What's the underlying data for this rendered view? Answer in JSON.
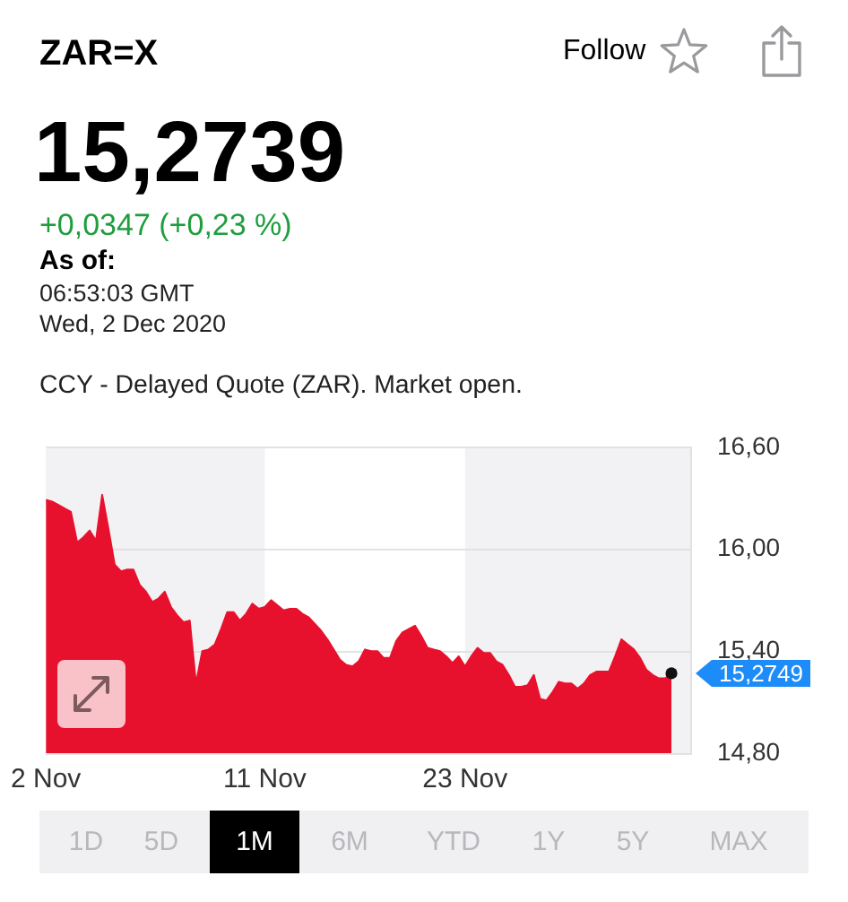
{
  "chart_data": {
    "type": "area",
    "title": "ZAR=X",
    "annotations": [
      "Follow",
      "15,2739",
      "+0,0347 (+0,23 %)",
      "As of:",
      "06:53:03 GMT",
      "Wed, 2 Dec 2020",
      "CCY - Delayed Quote (ZAR). Market open.",
      "15,2749",
      "1D",
      "5D",
      "1M",
      "6M",
      "YTD",
      "1Y",
      "5Y",
      "MAX"
    ],
    "categories": [
      "2 Nov",
      null,
      null,
      null,
      null,
      null,
      null,
      null,
      null,
      null,
      null,
      null,
      null,
      null,
      null,
      null,
      null,
      null,
      null,
      null,
      null,
      null,
      null,
      null,
      null,
      null,
      null,
      null,
      null,
      null,
      null,
      null,
      null,
      null,
      null,
      "11 Nov",
      null,
      null,
      null,
      null,
      null,
      null,
      null,
      null,
      null,
      null,
      null,
      null,
      null,
      null,
      null,
      null,
      null,
      null,
      null,
      null,
      null,
      null,
      null,
      null,
      null,
      null,
      null,
      null,
      null,
      null,
      null,
      "23 Nov",
      null,
      null,
      null,
      null,
      null,
      null,
      null,
      null,
      null,
      null,
      null,
      null,
      null,
      null,
      null,
      null,
      null,
      null,
      null,
      null,
      null,
      null,
      null,
      null,
      null,
      null,
      null,
      null,
      null,
      null,
      null,
      null,
      null,
      null,
      null,
      null
    ],
    "values": [
      16.29,
      16.28,
      16.26,
      16.24,
      16.22,
      16.04,
      16.07,
      16.11,
      16.05,
      16.32,
      16.12,
      15.91,
      15.87,
      15.88,
      15.88,
      15.79,
      15.75,
      15.69,
      15.71,
      15.75,
      15.66,
      15.61,
      15.57,
      15.58,
      15.21,
      15.4,
      15.41,
      15.44,
      15.53,
      15.63,
      15.63,
      15.58,
      15.62,
      15.68,
      15.65,
      15.66,
      15.7,
      15.67,
      15.64,
      15.65,
      15.65,
      15.62,
      15.6,
      15.56,
      15.52,
      15.47,
      15.41,
      15.35,
      15.32,
      15.31,
      15.34,
      15.41,
      15.4,
      15.4,
      15.36,
      15.36,
      15.46,
      15.51,
      15.53,
      15.55,
      15.49,
      15.42,
      15.41,
      15.4,
      15.37,
      15.33,
      15.37,
      15.31,
      15.37,
      15.42,
      15.39,
      15.39,
      15.34,
      15.32,
      15.26,
      15.19,
      15.19,
      15.2,
      15.26,
      15.12,
      15.11,
      15.16,
      15.22,
      15.21,
      15.21,
      15.18,
      15.21,
      15.26,
      15.28,
      15.28,
      15.28,
      15.37,
      15.47,
      15.44,
      15.41,
      15.36,
      15.29,
      15.26,
      15.24,
      15.24,
      15.27,
      null,
      null,
      null
    ],
    "color": "#e8112d",
    "ylim": [
      14.8,
      16.6
    ],
    "yticks": [
      {
        "value": 14.8,
        "label": "14,80"
      },
      {
        "value": 15.4,
        "label": "15,40"
      },
      {
        "value": 16.0,
        "label": "16,00"
      },
      {
        "value": 16.6,
        "label": "16,60"
      }
    ],
    "grid": "y",
    "bands": [
      {
        "axis": "x",
        "from": "11 Nov",
        "to": "23 Nov",
        "color": "#ffffff"
      }
    ]
  }
}
